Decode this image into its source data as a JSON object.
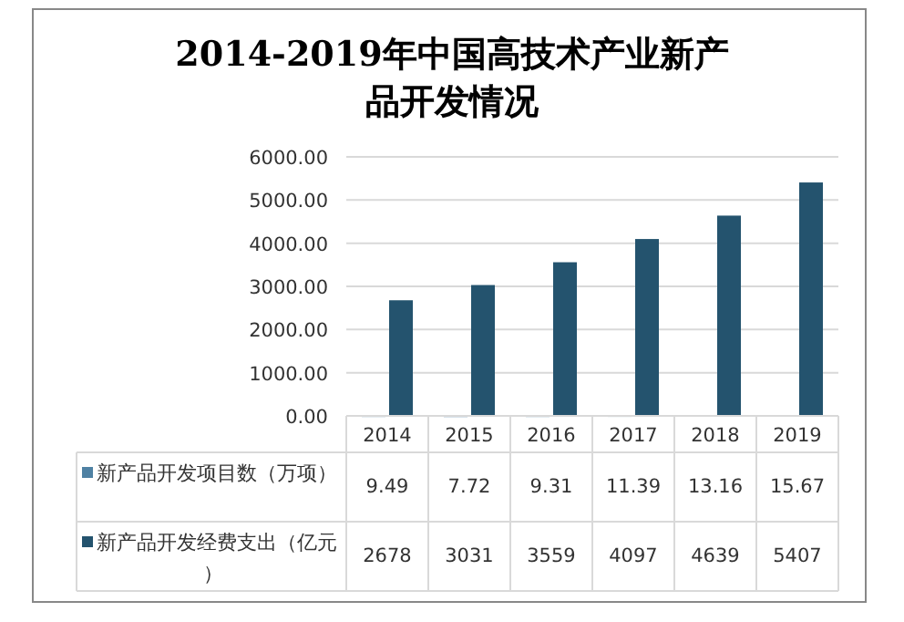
{
  "chart_data": {
    "type": "bar",
    "title": "2014-2019年中国高技术产业新产品开发情况",
    "categories": [
      "2014",
      "2015",
      "2016",
      "2017",
      "2018",
      "2019"
    ],
    "series": [
      {
        "name": "新产品开发项目数（万项）",
        "color": "#4f81a3",
        "values": [
          9.49,
          7.72,
          9.31,
          11.39,
          13.16,
          15.67
        ]
      },
      {
        "name": "新产品开发经费支出（亿元）",
        "color": "#24536e",
        "values": [
          2678,
          3031,
          3559,
          4097,
          4639,
          5407
        ]
      }
    ],
    "ylim": [
      0,
      6000
    ],
    "yticks": [
      {
        "value": 0,
        "label": "0.00"
      },
      {
        "value": 1000,
        "label": "1000.00"
      },
      {
        "value": 2000,
        "label": "2000.00"
      },
      {
        "value": 3000,
        "label": "3000.00"
      },
      {
        "value": 4000,
        "label": "4000.00"
      },
      {
        "value": 5000,
        "label": "5000.00"
      },
      {
        "value": 6000,
        "label": "6000.00"
      }
    ],
    "grid": "y",
    "legend": "bottom",
    "data_labels": true
  }
}
